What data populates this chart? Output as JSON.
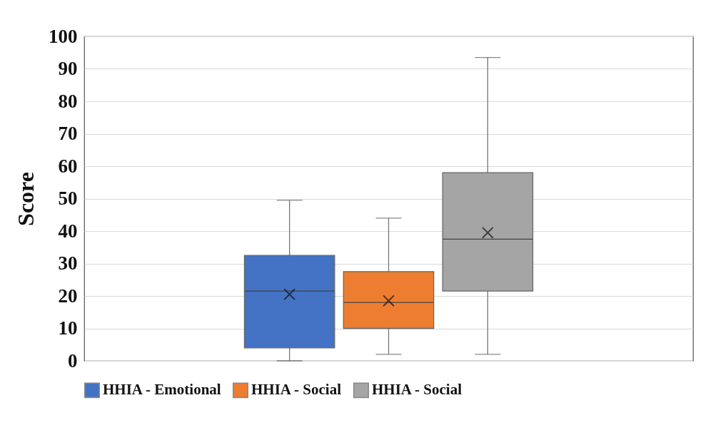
{
  "chart_data": {
    "type": "box",
    "ylabel": "Score",
    "categories": [
      null
    ],
    "series": [
      {
        "name": "HHIA - Emotional",
        "color": "#4472c4",
        "boxes": [
          {
            "low": 0,
            "q1": 4,
            "median": 21.5,
            "q3": 32.5,
            "high": 49.5,
            "mean": 20.5
          }
        ]
      },
      {
        "name": "HHIA - Social",
        "color": "#ed7d31",
        "boxes": [
          {
            "low": 2,
            "q1": 10,
            "median": 18,
            "q3": 27.5,
            "high": 44,
            "mean": 18.5
          }
        ]
      },
      {
        "name": "HHIA - Social",
        "color": "#a5a5a5",
        "boxes": [
          {
            "low": 2,
            "q1": 21.5,
            "median": 37.5,
            "q3": 58,
            "high": 93.5,
            "mean": 39.5
          }
        ]
      }
    ],
    "ylim": [
      0,
      100
    ],
    "yticks": [
      0,
      10,
      20,
      30,
      40,
      50,
      60,
      70,
      80,
      90,
      100
    ],
    "grid": true,
    "legend": "bottom",
    "marker": "cross"
  }
}
